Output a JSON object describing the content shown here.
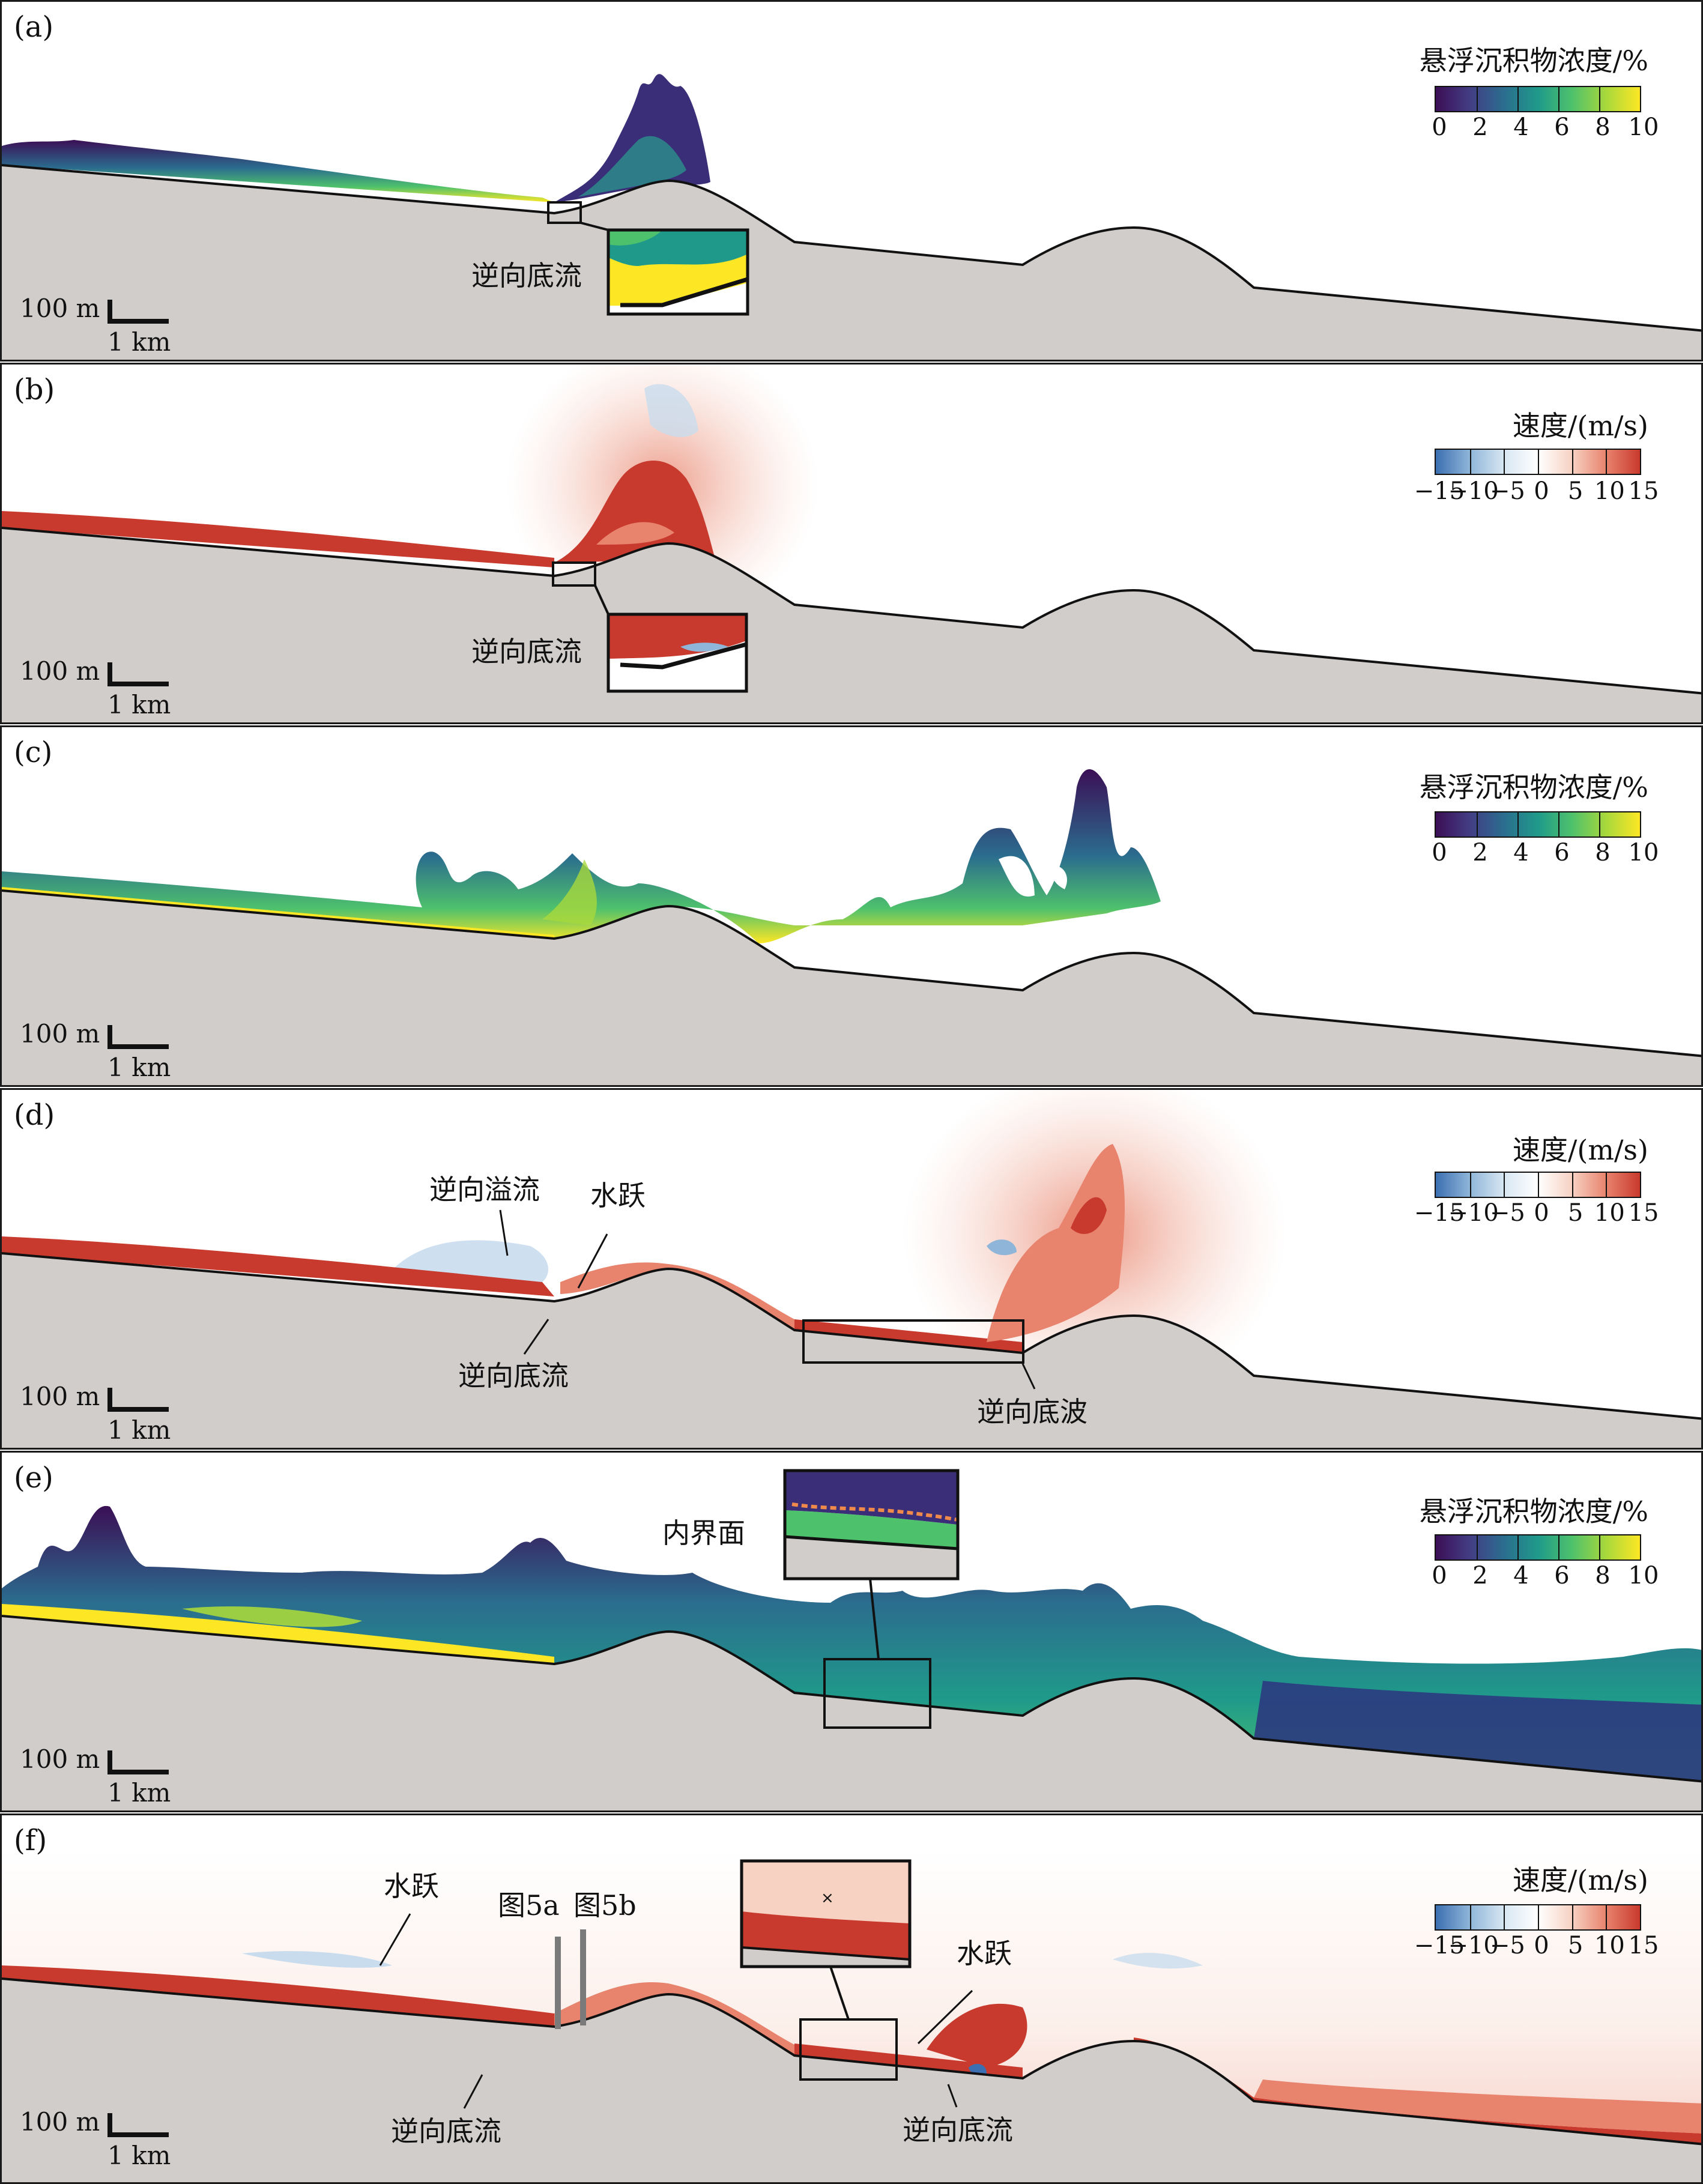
{
  "colors": {
    "seabed": "#d1cdcb",
    "outline": "#111111",
    "concentration_scale": [
      "#3b0f55",
      "#433d85",
      "#2b6d8e",
      "#1f9a8a",
      "#4ec16c",
      "#a8d83c",
      "#fde725"
    ],
    "velocity_scale": [
      "#3c6fb1",
      "#8fb6d9",
      "#d7e6f2",
      "#ffffff",
      "#f7d2c3",
      "#e8836d",
      "#c93a2e"
    ]
  },
  "colorbars": {
    "concentration": {
      "title": "悬浮沉积物浓度/%",
      "ticks": [
        "0",
        "2",
        "4",
        "6",
        "8",
        "10"
      ]
    },
    "velocity": {
      "title": "速度/(m/s)",
      "ticks": [
        "−15",
        "−10",
        "−5",
        "0",
        "5",
        "10",
        "15"
      ]
    }
  },
  "scale_bar": {
    "vertical": "100 m",
    "horizontal": "1 km"
  },
  "panels": [
    {
      "label": "(a)",
      "variable": "concentration",
      "annotations": [
        "逆向底流"
      ]
    },
    {
      "label": "(b)",
      "variable": "velocity",
      "annotations": [
        "逆向底流"
      ]
    },
    {
      "label": "(c)",
      "variable": "concentration",
      "annotations": []
    },
    {
      "label": "(d)",
      "variable": "velocity",
      "annotations": [
        "逆向溢流",
        "水跃",
        "逆向底流",
        "逆向底波"
      ]
    },
    {
      "label": "(e)",
      "variable": "concentration",
      "annotations": [
        "内界面"
      ]
    },
    {
      "label": "(f)",
      "variable": "velocity",
      "annotations": [
        "水跃",
        "图5a",
        "图5b",
        "逆向底流",
        "水跃",
        "逆向底流"
      ]
    }
  ]
}
